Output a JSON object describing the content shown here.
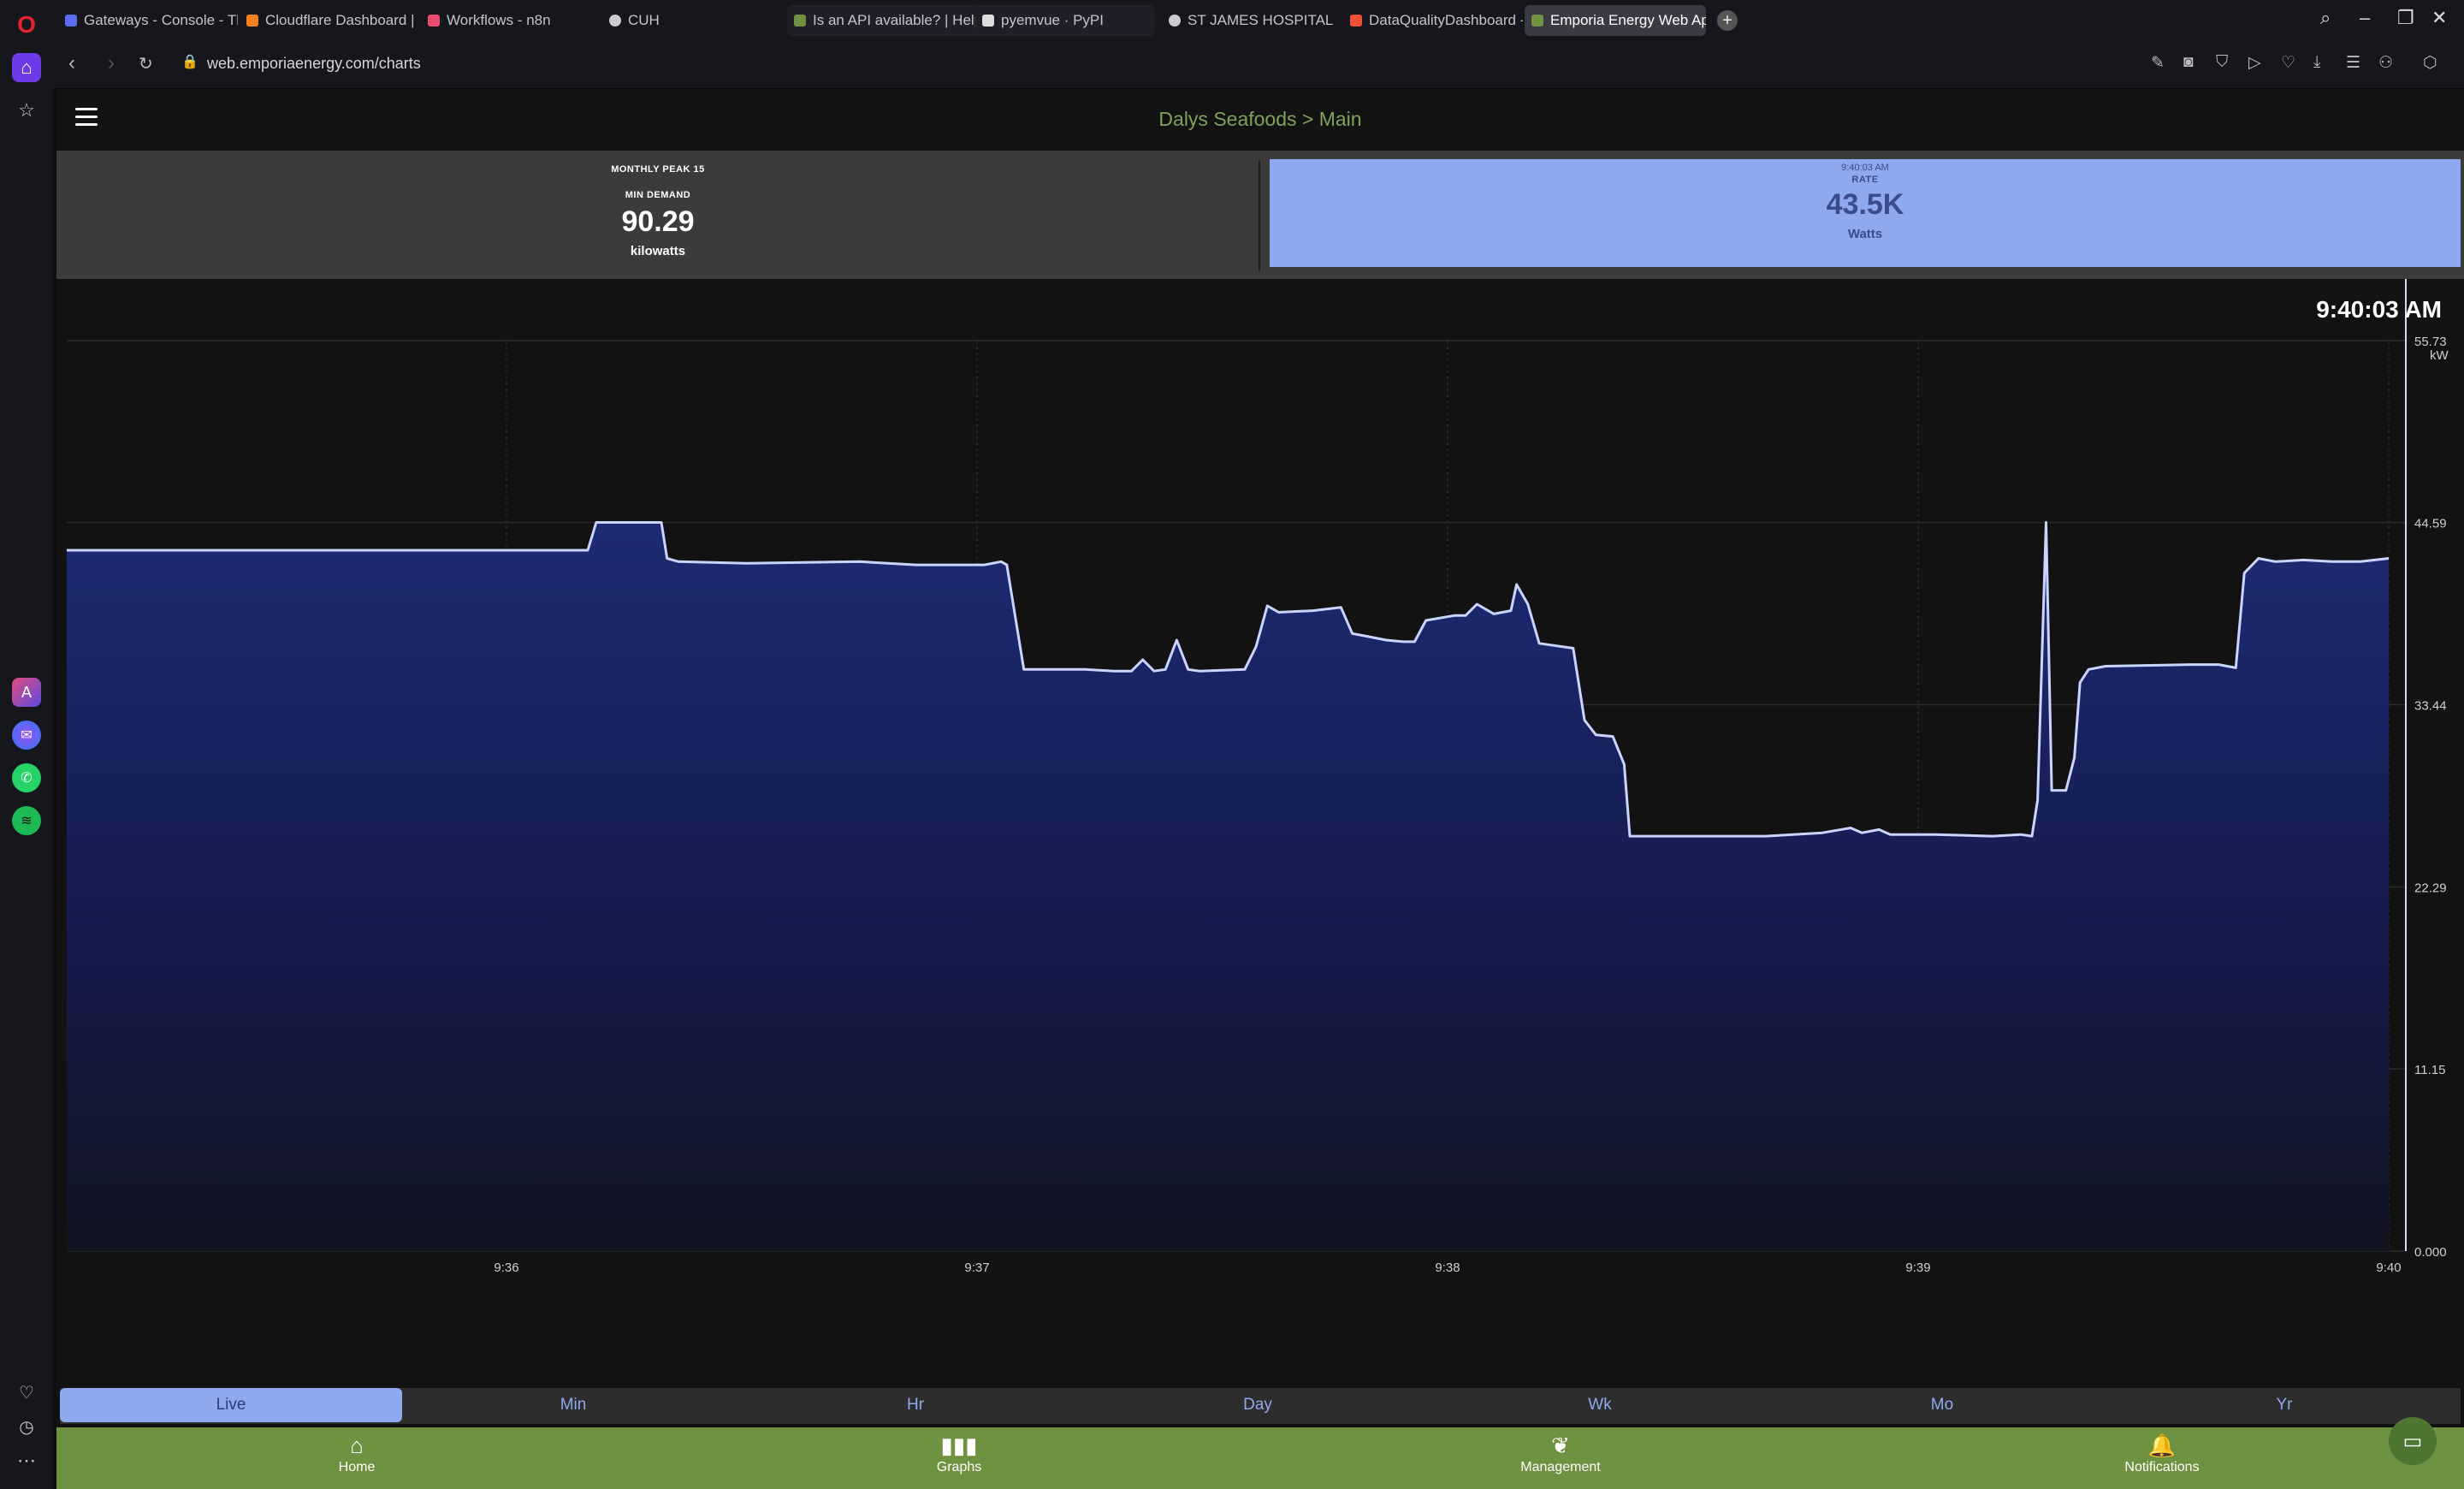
{
  "browser": {
    "tabs": [
      {
        "title": "Gateways - Console - The",
        "color": "#5b6cf0"
      },
      {
        "title": "Cloudflare Dashboard | M",
        "color": "#f48120"
      },
      {
        "title": "Workflows - n8n",
        "color": "#ea4b71"
      },
      {
        "title": "CUH",
        "color": "#cccccc"
      },
      {
        "title": "Is an API available? | Help",
        "color": "#6f9241"
      },
      {
        "title": "pyemvue · PyPI",
        "color": "#dddddd"
      },
      {
        "title": "ST JAMES HOSPITAL",
        "color": "#cccccc"
      },
      {
        "title": "DataQualityDashboard - F",
        "color": "#f05033"
      },
      {
        "title": "Emporia Energy Web App",
        "color": "#6f9241"
      }
    ],
    "url": "web.emporiaenergy.com/charts"
  },
  "app": {
    "title": "Dalys Seafoods > Main",
    "peak": {
      "label_line1": "MONTHLY PEAK 15",
      "label_line2": "MIN DEMAND",
      "value": "90.29",
      "unit": "kilowatts"
    },
    "rate": {
      "time": "9:40:03 AM",
      "label": "RATE",
      "value": "43.5K",
      "unit": "Watts"
    },
    "chart_time": "9:40:03 AM",
    "range_tabs": [
      "Live",
      "Min",
      "Hr",
      "Day",
      "Wk",
      "Mo",
      "Yr"
    ],
    "active_range": "Live",
    "nav": [
      {
        "label": "Home",
        "icon": "home-icon"
      },
      {
        "label": "Graphs",
        "icon": "bar-chart-icon"
      },
      {
        "label": "Management",
        "icon": "leaf-icon"
      },
      {
        "label": "Notifications",
        "icon": "bell-icon"
      }
    ]
  },
  "chart_data": {
    "type": "area",
    "ylabel": "kW",
    "ylim": [
      0,
      55.73
    ],
    "yticks": [
      "0.000",
      "11.15",
      "22.29",
      "33.44",
      "44.59",
      "55.73"
    ],
    "xticks": [
      "9:36",
      "9:37",
      "9:38",
      "9:39",
      "9:40"
    ],
    "xlim_minutes": [
      9.35,
      9.667
    ],
    "series": [
      {
        "values_kw": [
          [
            0,
            42.9
          ],
          [
            0.92,
            42.9
          ],
          [
            0.935,
            44.6
          ],
          [
            1.05,
            44.6
          ],
          [
            1.06,
            42.4
          ],
          [
            1.08,
            42.2
          ],
          [
            1.2,
            42.1
          ],
          [
            1.4,
            42.2
          ],
          [
            1.5,
            42.0
          ],
          [
            1.62,
            42.0
          ],
          [
            1.65,
            42.2
          ],
          [
            1.66,
            42.0
          ],
          [
            1.69,
            35.6
          ],
          [
            1.8,
            35.6
          ],
          [
            1.85,
            35.5
          ],
          [
            1.88,
            35.5
          ],
          [
            1.9,
            36.2
          ],
          [
            1.92,
            35.5
          ],
          [
            1.94,
            35.6
          ],
          [
            1.96,
            37.4
          ],
          [
            1.98,
            35.6
          ],
          [
            2.0,
            35.5
          ],
          [
            2.08,
            35.6
          ],
          [
            2.1,
            37.0
          ],
          [
            2.12,
            39.5
          ],
          [
            2.14,
            39.1
          ],
          [
            2.2,
            39.2
          ],
          [
            2.25,
            39.4
          ],
          [
            2.27,
            37.8
          ],
          [
            2.3,
            37.6
          ],
          [
            2.33,
            37.4
          ],
          [
            2.36,
            37.3
          ],
          [
            2.38,
            37.3
          ],
          [
            2.4,
            38.6
          ],
          [
            2.45,
            38.9
          ],
          [
            2.47,
            38.9
          ],
          [
            2.49,
            39.6
          ],
          [
            2.52,
            39.0
          ],
          [
            2.55,
            39.2
          ],
          [
            2.56,
            40.8
          ],
          [
            2.58,
            39.6
          ],
          [
            2.6,
            37.2
          ],
          [
            2.66,
            36.9
          ],
          [
            2.68,
            32.5
          ],
          [
            2.7,
            31.6
          ],
          [
            2.73,
            31.5
          ],
          [
            2.75,
            29.8
          ],
          [
            2.76,
            25.4
          ],
          [
            2.8,
            25.4
          ],
          [
            2.9,
            25.4
          ],
          [
            3.0,
            25.4
          ],
          [
            3.1,
            25.6
          ],
          [
            3.15,
            25.9
          ],
          [
            3.17,
            25.6
          ],
          [
            3.2,
            25.8
          ],
          [
            3.22,
            25.5
          ],
          [
            3.3,
            25.5
          ],
          [
            3.4,
            25.4
          ],
          [
            3.45,
            25.5
          ],
          [
            3.47,
            25.4
          ],
          [
            3.48,
            27.6
          ],
          [
            3.495,
            44.6
          ],
          [
            3.505,
            28.2
          ],
          [
            3.53,
            28.2
          ],
          [
            3.545,
            30.2
          ],
          [
            3.555,
            34.8
          ],
          [
            3.57,
            35.6
          ],
          [
            3.6,
            35.8
          ],
          [
            3.75,
            35.9
          ],
          [
            3.8,
            35.9
          ],
          [
            3.83,
            35.7
          ],
          [
            3.845,
            41.5
          ],
          [
            3.87,
            42.4
          ],
          [
            3.9,
            42.2
          ],
          [
            3.95,
            42.3
          ],
          [
            4.0,
            42.2
          ],
          [
            4.05,
            42.2
          ],
          [
            4.1,
            42.4
          ]
        ]
      }
    ]
  }
}
